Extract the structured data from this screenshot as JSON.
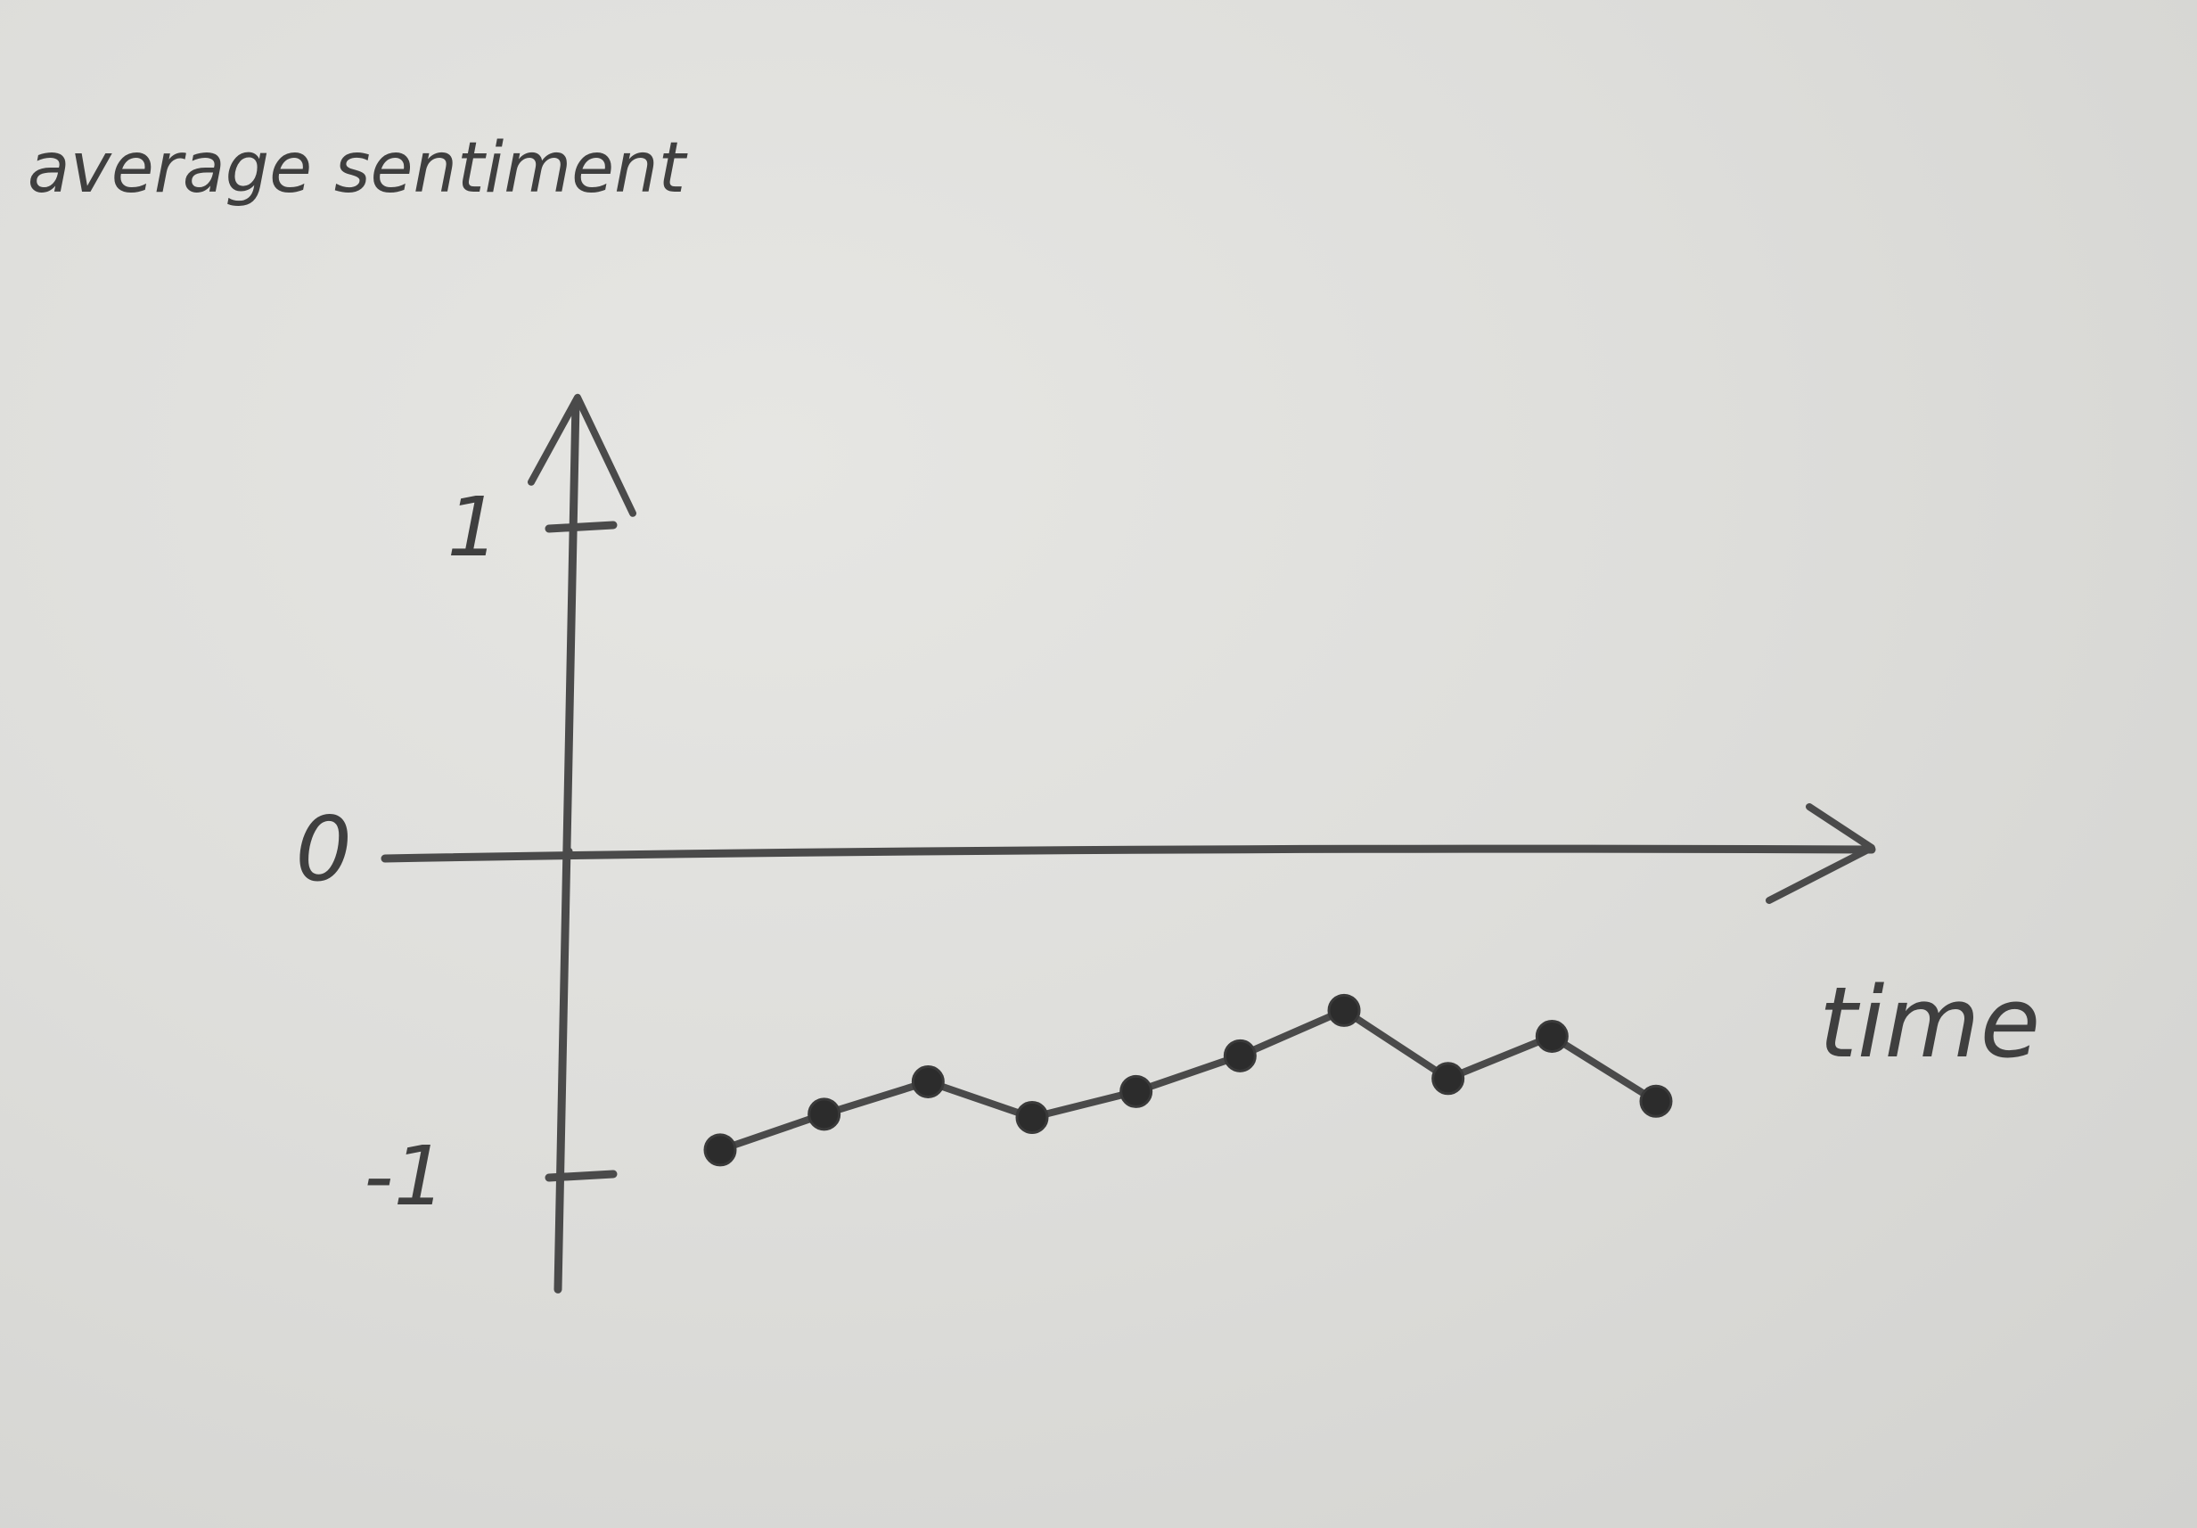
{
  "chart_data": {
    "type": "line",
    "ylabel": "average sentiment",
    "xlabel": "time",
    "yticks": [
      {
        "value": 1,
        "label": "1"
      },
      {
        "value": 0,
        "label": "0"
      },
      {
        "value": -1,
        "label": "-1"
      }
    ],
    "ylim": [
      -1.35,
      1.55
    ],
    "xlim": [
      -1.5,
      11
    ],
    "grid": false,
    "legend": "none",
    "series": [
      {
        "x": [
          1,
          2,
          3,
          4,
          5,
          6,
          7,
          8,
          9,
          10
        ],
        "values": [
          -0.92,
          -0.81,
          -0.71,
          -0.82,
          -0.74,
          -0.63,
          -0.49,
          -0.7,
          -0.57,
          -0.77
        ]
      }
    ]
  }
}
